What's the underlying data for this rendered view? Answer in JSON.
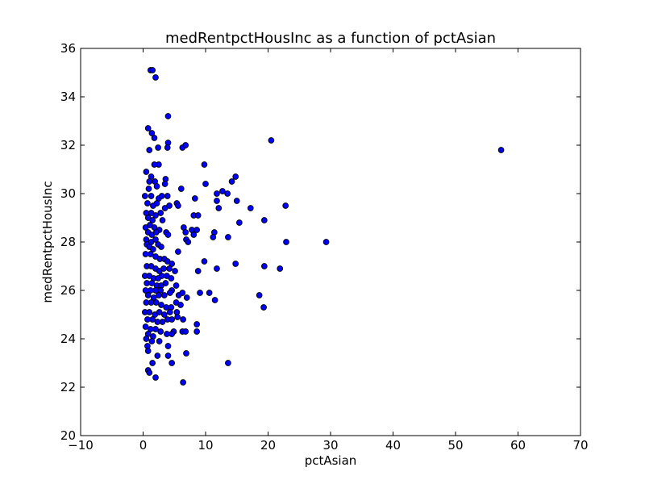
{
  "chart_data": {
    "type": "scatter",
    "title": "medRentpctHousInc as a function of pctAsian",
    "xlabel": "pctAsian",
    "ylabel": "medRentpctHousInc",
    "xlim": [
      -10,
      70
    ],
    "ylim": [
      20,
      36
    ],
    "xticks": [
      -10,
      0,
      10,
      20,
      30,
      40,
      50,
      60,
      70
    ],
    "xtick_labels": [
      "−10",
      "0",
      "10",
      "20",
      "30",
      "40",
      "50",
      "60",
      "70"
    ],
    "yticks": [
      20,
      22,
      24,
      26,
      28,
      30,
      32,
      34,
      36
    ],
    "ytick_labels": [
      "20",
      "22",
      "24",
      "26",
      "28",
      "30",
      "32",
      "34",
      "36"
    ],
    "grid": false,
    "marker_color": "#0000ff",
    "marker_edge_color": "#000000",
    "points": [
      [
        1.2,
        35.1
      ],
      [
        1.5,
        35.1
      ],
      [
        2.0,
        34.8
      ],
      [
        4.0,
        33.2
      ],
      [
        0.8,
        32.7
      ],
      [
        1.4,
        32.5
      ],
      [
        1.8,
        32.3
      ],
      [
        4.0,
        32.1
      ],
      [
        3.9,
        31.9
      ],
      [
        2.4,
        31.9
      ],
      [
        1.0,
        31.8
      ],
      [
        6.3,
        31.9
      ],
      [
        6.8,
        32.0
      ],
      [
        20.5,
        32.2
      ],
      [
        57.3,
        31.8
      ],
      [
        1.8,
        31.2
      ],
      [
        2.5,
        31.2
      ],
      [
        9.8,
        31.2
      ],
      [
        0.5,
        30.9
      ],
      [
        1.3,
        30.7
      ],
      [
        1.0,
        30.5
      ],
      [
        1.9,
        30.5
      ],
      [
        3.6,
        30.6
      ],
      [
        3.5,
        30.4
      ],
      [
        0.9,
        30.2
      ],
      [
        2.2,
        30.3
      ],
      [
        6.1,
        30.2
      ],
      [
        14.8,
        30.7
      ],
      [
        14.2,
        30.5
      ],
      [
        10.0,
        30.4
      ],
      [
        0.3,
        29.9
      ],
      [
        1.3,
        29.9
      ],
      [
        2.5,
        29.8
      ],
      [
        3.0,
        29.9
      ],
      [
        3.9,
        29.9
      ],
      [
        5.4,
        29.6
      ],
      [
        8.3,
        29.8
      ],
      [
        11.8,
        30.0
      ],
      [
        11.8,
        29.7
      ],
      [
        12.7,
        30.1
      ],
      [
        13.5,
        30.0
      ],
      [
        0.7,
        29.6
      ],
      [
        1.6,
        29.5
      ],
      [
        2.2,
        29.6
      ],
      [
        3.5,
        29.4
      ],
      [
        4.2,
        29.5
      ],
      [
        5.6,
        29.5
      ],
      [
        12.1,
        29.4
      ],
      [
        15.0,
        29.7
      ],
      [
        17.2,
        29.4
      ],
      [
        22.8,
        29.5
      ],
      [
        0.5,
        29.2
      ],
      [
        1.3,
        29.2
      ],
      [
        2.0,
        29.1
      ],
      [
        2.8,
        29.2
      ],
      [
        0.8,
        29.0
      ],
      [
        1.5,
        28.9
      ],
      [
        3.1,
        28.9
      ],
      [
        8.1,
        29.1
      ],
      [
        8.8,
        29.1
      ],
      [
        15.4,
        28.8
      ],
      [
        19.4,
        28.9
      ],
      [
        0.4,
        28.6
      ],
      [
        1.1,
        28.7
      ],
      [
        1.8,
        28.6
      ],
      [
        2.6,
        28.5
      ],
      [
        0.8,
        28.4
      ],
      [
        1.4,
        28.3
      ],
      [
        2.1,
        28.4
      ],
      [
        3.7,
        28.4
      ],
      [
        4.0,
        28.3
      ],
      [
        6.5,
        28.6
      ],
      [
        6.8,
        28.4
      ],
      [
        7.8,
        28.5
      ],
      [
        8.6,
        28.5
      ],
      [
        8.1,
        28.3
      ],
      [
        11.4,
        28.4
      ],
      [
        11.2,
        28.2
      ],
      [
        13.6,
        28.2
      ],
      [
        0.5,
        28.1
      ],
      [
        1.3,
        28.0
      ],
      [
        2.0,
        28.1
      ],
      [
        2.4,
        27.9
      ],
      [
        0.6,
        27.9
      ],
      [
        1.0,
        27.8
      ],
      [
        1.6,
        27.7
      ],
      [
        2.9,
        27.8
      ],
      [
        6.9,
        28.1
      ],
      [
        7.2,
        28.0
      ],
      [
        22.9,
        28.0
      ],
      [
        29.3,
        28.0
      ],
      [
        0.4,
        27.5
      ],
      [
        1.2,
        27.5
      ],
      [
        2.0,
        27.4
      ],
      [
        2.7,
        27.3
      ],
      [
        3.4,
        27.3
      ],
      [
        3.9,
        27.2
      ],
      [
        5.6,
        27.6
      ],
      [
        4.6,
        27.1
      ],
      [
        9.8,
        27.2
      ],
      [
        14.8,
        27.1
      ],
      [
        19.4,
        27.0
      ],
      [
        21.9,
        26.9
      ],
      [
        0.6,
        27.0
      ],
      [
        1.3,
        27.0
      ],
      [
        2.0,
        26.9
      ],
      [
        2.6,
        26.8
      ],
      [
        3.3,
        26.9
      ],
      [
        4.2,
        26.9
      ],
      [
        5.1,
        26.8
      ],
      [
        8.8,
        26.8
      ],
      [
        11.8,
        26.9
      ],
      [
        0.3,
        26.6
      ],
      [
        1.0,
        26.6
      ],
      [
        1.7,
        26.5
      ],
      [
        2.4,
        26.5
      ],
      [
        3.0,
        26.6
      ],
      [
        3.8,
        26.6
      ],
      [
        4.5,
        26.5
      ],
      [
        0.6,
        26.3
      ],
      [
        1.4,
        26.3
      ],
      [
        2.2,
        26.2
      ],
      [
        2.9,
        26.2
      ],
      [
        3.6,
        26.3
      ],
      [
        0.4,
        26.0
      ],
      [
        1.2,
        26.0
      ],
      [
        2.0,
        26.0
      ],
      [
        2.8,
        26.0
      ],
      [
        5.3,
        26.2
      ],
      [
        4.6,
        26.0
      ],
      [
        0.8,
        25.8
      ],
      [
        1.7,
        25.7
      ],
      [
        2.5,
        25.8
      ],
      [
        3.4,
        25.8
      ],
      [
        4.3,
        25.9
      ],
      [
        5.7,
        25.8
      ],
      [
        6.3,
        25.9
      ],
      [
        7.0,
        25.7
      ],
      [
        9.1,
        25.9
      ],
      [
        10.6,
        25.9
      ],
      [
        11.5,
        25.6
      ],
      [
        18.6,
        25.8
      ],
      [
        0.5,
        25.5
      ],
      [
        1.3,
        25.5
      ],
      [
        2.1,
        25.5
      ],
      [
        2.9,
        25.4
      ],
      [
        3.7,
        25.3
      ],
      [
        4.5,
        25.3
      ],
      [
        5.3,
        25.5
      ],
      [
        6.0,
        25.4
      ],
      [
        19.3,
        25.3
      ],
      [
        0.3,
        25.1
      ],
      [
        1.0,
        25.1
      ],
      [
        1.9,
        25.0
      ],
      [
        2.6,
        25.1
      ],
      [
        3.4,
        25.0
      ],
      [
        4.3,
        25.1
      ],
      [
        5.4,
        25.1
      ],
      [
        0.7,
        24.8
      ],
      [
        1.5,
        24.8
      ],
      [
        2.3,
        24.7
      ],
      [
        3.1,
        24.7
      ],
      [
        3.9,
        24.8
      ],
      [
        4.6,
        24.8
      ],
      [
        5.5,
        24.9
      ],
      [
        6.4,
        24.8
      ],
      [
        8.6,
        24.6
      ],
      [
        0.4,
        24.5
      ],
      [
        1.2,
        24.4
      ],
      [
        2.0,
        24.4
      ],
      [
        2.8,
        24.3
      ],
      [
        0.8,
        24.2
      ],
      [
        1.6,
        24.1
      ],
      [
        3.8,
        24.2
      ],
      [
        4.9,
        24.3
      ],
      [
        4.6,
        24.2
      ],
      [
        6.3,
        24.3
      ],
      [
        6.8,
        24.3
      ],
      [
        8.6,
        24.3
      ],
      [
        0.5,
        24.0
      ],
      [
        2.6,
        23.9
      ],
      [
        1.4,
        23.9
      ],
      [
        4.0,
        23.7
      ],
      [
        0.7,
        23.7
      ],
      [
        0.8,
        23.5
      ],
      [
        6.9,
        23.4
      ],
      [
        2.3,
        23.3
      ],
      [
        4.0,
        23.3
      ],
      [
        1.5,
        23.0
      ],
      [
        4.6,
        23.0
      ],
      [
        13.6,
        23.0
      ],
      [
        0.8,
        22.7
      ],
      [
        1.0,
        22.6
      ],
      [
        2.0,
        22.4
      ],
      [
        6.4,
        22.2
      ]
    ]
  }
}
